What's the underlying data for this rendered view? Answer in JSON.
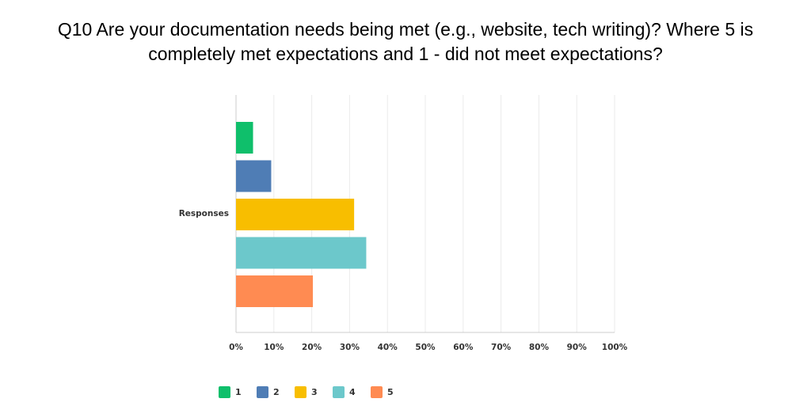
{
  "title_lines": [
    "Q10 Are your documentation needs being met (e.g., website, tech writing)? Where 5 is",
    "completely met expectations and 1 - did not meet expectations?"
  ],
  "chart_data": {
    "type": "bar",
    "orientation": "horizontal",
    "title": "Q10 Are your documentation needs being met (e.g., website, tech writing)? Where 5 is completely met expectations and 1 - did not meet expectations?",
    "categories": [
      "Responses"
    ],
    "series": [
      {
        "name": "1",
        "color": "#0fbf6b",
        "values": [
          4.5
        ]
      },
      {
        "name": "2",
        "color": "#4f7db5",
        "values": [
          9.3
        ]
      },
      {
        "name": "3",
        "color": "#f8be00",
        "values": [
          31.2
        ]
      },
      {
        "name": "4",
        "color": "#6cc8cb",
        "values": [
          34.4
        ]
      },
      {
        "name": "5",
        "color": "#ff8b52",
        "values": [
          20.3
        ]
      }
    ],
    "xlim": [
      0,
      100
    ],
    "x_ticks": [
      "0%",
      "10%",
      "20%",
      "30%",
      "40%",
      "50%",
      "60%",
      "70%",
      "80%",
      "90%",
      "100%"
    ],
    "grid": true,
    "legend_position": "bottom"
  }
}
